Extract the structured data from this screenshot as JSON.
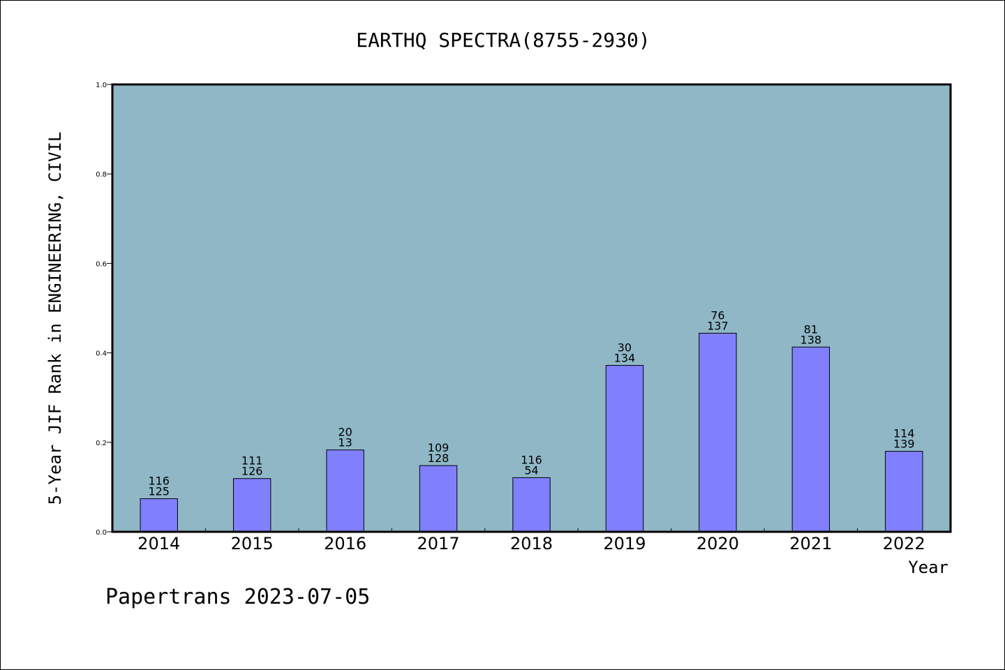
{
  "chart_data": {
    "type": "bar",
    "title": "EARTHQ SPECTRA(8755-2930)",
    "xlabel": "Year",
    "ylabel": "5-Year JIF Rank in ENGINEERING, CIVIL",
    "categories": [
      "2014",
      "2015",
      "2016",
      "2017",
      "2018",
      "2019",
      "2020",
      "2021",
      "2022"
    ],
    "values": [
      0.074,
      0.119,
      0.183,
      0.148,
      0.121,
      0.372,
      0.444,
      0.413,
      0.18
    ],
    "labels_top": [
      "116",
      "111",
      "20",
      "109",
      "116",
      "30",
      "76",
      "81",
      "114"
    ],
    "labels_bottom": [
      "125",
      "126",
      "13",
      "128",
      "54",
      "134",
      "137",
      "138",
      "139"
    ],
    "ylim": [
      0,
      1.0
    ],
    "yticks": [
      "0.0",
      "0.2",
      "0.4",
      "0.6",
      "0.8",
      "1.0"
    ],
    "grid": false,
    "colors": {
      "plot_background": "#8fb7c6",
      "bar_fill": "#8080ff",
      "bar_stroke": "#000000"
    }
  },
  "footer": {
    "text": "Papertrans 2023-07-05"
  }
}
